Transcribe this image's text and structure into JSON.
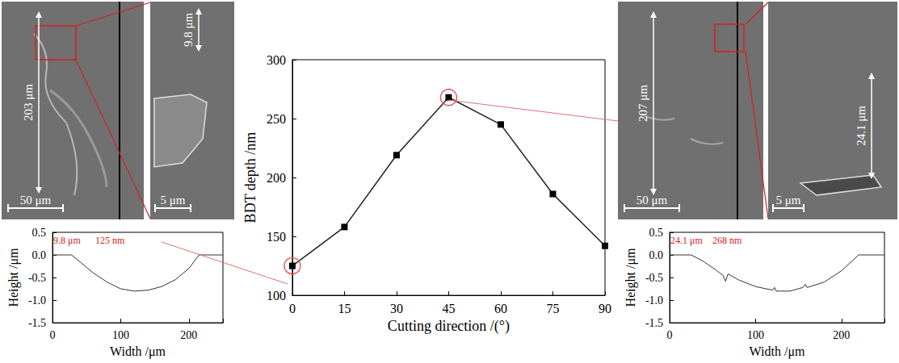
{
  "images": [
    {
      "height_label": "203 μm",
      "scale_bar": "50 μm"
    },
    {
      "height_label": "9.8 μm",
      "scale_bar": "5 μm"
    },
    {
      "height_label": "207 μm",
      "scale_bar": "50 μm"
    },
    {
      "height_label": "24.1 μm",
      "scale_bar": "5 μm"
    }
  ],
  "chart_data": [
    {
      "type": "line",
      "x": [
        0,
        15,
        30,
        45,
        60,
        75,
        90
      ],
      "values": [
        125,
        158,
        219,
        268,
        245,
        186,
        142
      ],
      "xlabel": "Cutting direction /(°)",
      "ylabel": "BDT depth /nm",
      "xlim": [
        0,
        90
      ],
      "xticks": [
        0,
        15,
        30,
        45,
        60,
        75,
        90
      ],
      "ylim": [
        100,
        300
      ],
      "yticks": [
        100,
        150,
        200,
        250,
        300
      ],
      "color": "#222222",
      "marker": "square",
      "line_style": "solid",
      "grid": false
    },
    {
      "type": "line",
      "x": [
        0,
        28,
        40,
        60,
        80,
        100,
        120,
        140,
        160,
        180,
        200,
        215,
        250
      ],
      "values": [
        0,
        0,
        -0.15,
        -0.4,
        -0.6,
        -0.75,
        -0.8,
        -0.78,
        -0.7,
        -0.55,
        -0.3,
        0,
        0
      ],
      "xlabel": "Width /μm",
      "ylabel": "Height /μm",
      "xlim": [
        0,
        250
      ],
      "xticks": [
        0,
        100,
        200
      ],
      "ylim": [
        -1.5,
        0.5
      ],
      "yticks": [
        -1.5,
        {
          "value": -1,
          "label": "-1.0"
        },
        -0.5,
        {
          "value": 0,
          "label": "0.0"
        },
        0.5
      ],
      "annotations": [
        "9.8 μm",
        "125 nm"
      ],
      "color": "#333333",
      "line_style": "solid",
      "grid": false
    },
    {
      "type": "line",
      "x": [
        0,
        25,
        40,
        55,
        62,
        65,
        68,
        80,
        100,
        120,
        122,
        124,
        140,
        155,
        158,
        160,
        180,
        200,
        220,
        250
      ],
      "values": [
        0,
        0,
        -0.15,
        -0.35,
        -0.45,
        -0.58,
        -0.42,
        -0.55,
        -0.7,
        -0.78,
        -0.72,
        -0.8,
        -0.8,
        -0.72,
        -0.65,
        -0.72,
        -0.6,
        -0.35,
        0,
        0
      ],
      "xlabel": "Width /μm",
      "ylabel": "Height /μm",
      "xlim": [
        0,
        250
      ],
      "xticks": [
        0,
        100,
        200
      ],
      "ylim": [
        -1.5,
        0.5
      ],
      "yticks": [
        -1.5,
        {
          "value": -1,
          "label": "-1.0"
        },
        -0.5,
        {
          "value": 0,
          "label": "0.0"
        },
        0.5
      ],
      "annotations": [
        "24.1 μm",
        "268 nm"
      ],
      "color": "#333333",
      "line_style": "solid",
      "grid": false
    }
  ]
}
